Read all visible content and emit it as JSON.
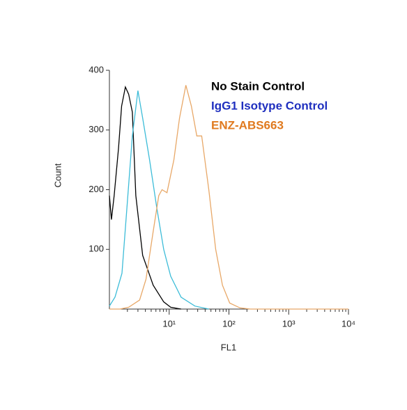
{
  "chart_data": {
    "type": "line",
    "xlabel": "FL1",
    "ylabel": "Count",
    "xscale": "log",
    "xlim": [
      1,
      10000
    ],
    "xticks": [
      {
        "value": 10,
        "label": "10¹"
      },
      {
        "value": 100,
        "label": "10²"
      },
      {
        "value": 1000,
        "label": "10³"
      },
      {
        "value": 10000,
        "label": "10⁴"
      }
    ],
    "ylim": [
      0,
      400
    ],
    "yticks": [
      100,
      200,
      300,
      400
    ],
    "legend": "upper right",
    "series": [
      {
        "name": "No Stain Control",
        "color": "#000000",
        "label_color": "#000000",
        "x": [
          1,
          1.08,
          1.2,
          1.42,
          1.6,
          1.85,
          2.1,
          2.42,
          2.77,
          3.6,
          5.4,
          8.1,
          10.6,
          15.8
        ],
        "values": [
          190,
          150,
          190,
          270,
          340,
          372,
          360,
          330,
          190,
          90,
          40,
          12,
          3,
          0
        ]
      },
      {
        "name": "IgG1 Isotype Control",
        "color": "#3cbcd8",
        "label_color": "#1f2fbf",
        "x": [
          1,
          1.24,
          1.62,
          2.0,
          2.42,
          3.0,
          3.6,
          4.7,
          6.2,
          8.1,
          10.6,
          15.8,
          27,
          46
        ],
        "values": [
          5,
          20,
          60,
          180,
          290,
          366,
          320,
          250,
          170,
          100,
          55,
          20,
          5,
          0
        ]
      },
      {
        "name": "ENZ-ABS663",
        "color": "#e8a868",
        "label_color": "#e07a1f",
        "x": [
          1,
          1.5,
          2.1,
          3.2,
          4.1,
          5.4,
          6.7,
          7.6,
          9.2,
          12,
          14.9,
          19,
          23.5,
          29,
          35,
          46,
          60,
          78,
          103,
          153,
          228,
          10000
        ],
        "values": [
          0,
          0,
          3,
          15,
          50,
          130,
          190,
          200,
          195,
          250,
          320,
          375,
          340,
          290,
          290,
          200,
          100,
          40,
          10,
          2,
          0,
          0
        ]
      }
    ]
  }
}
